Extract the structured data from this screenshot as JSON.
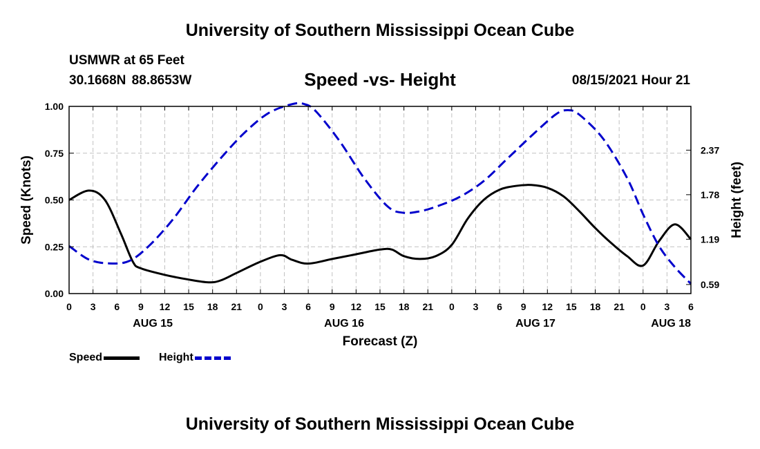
{
  "header": {
    "title": "University of Southern Mississippi Ocean Cube",
    "station": "USMWR at 65 Feet",
    "coordinates": "30.1668N  88.8653W",
    "subtitle": "Speed -vs- Height",
    "datetime": "08/15/2021 Hour 21"
  },
  "footer": {
    "title": "University of Southern Mississippi Ocean Cube"
  },
  "legend": {
    "speed_label": "Speed",
    "height_label": "Height"
  },
  "colors": {
    "speed": "#000000",
    "height": "#0000cc",
    "grid": "#c0c0c0"
  },
  "chart_data": {
    "type": "line",
    "title": "Speed -vs- Height",
    "xlabel": "Forecast (Z)",
    "ylabel": "Speed (Knots)",
    "y2label": "Height (feet)",
    "xlim": [
      0,
      78
    ],
    "ylim": [
      0,
      1.0
    ],
    "y_ticks": [
      0.0,
      0.25,
      0.5,
      0.75,
      1.0
    ],
    "y_tick_labels": [
      "0.00",
      "0.25",
      "0.50",
      "0.75",
      "1.00"
    ],
    "y2_ticks": [
      0.59,
      1.19,
      1.78,
      2.37
    ],
    "y2_tick_labels": [
      "0.59",
      "1.19",
      "1.78",
      "2.37"
    ],
    "y2lim": [
      0.47,
      2.95
    ],
    "x_ticks": [
      0,
      3,
      6,
      9,
      12,
      15,
      18,
      21,
      24,
      27,
      30,
      33,
      36,
      39,
      42,
      45,
      48,
      51,
      54,
      57,
      60,
      63,
      66,
      69,
      72,
      75,
      78
    ],
    "x_tick_labels": [
      "0",
      "3",
      "6",
      "9",
      "12",
      "15",
      "18",
      "21",
      "0",
      "3",
      "6",
      "9",
      "12",
      "15",
      "18",
      "21",
      "0",
      "3",
      "6",
      "9",
      "12",
      "15",
      "18",
      "21",
      "0",
      "3",
      "6"
    ],
    "date_labels": [
      {
        "x": 10.5,
        "label": "AUG 15"
      },
      {
        "x": 34.5,
        "label": "AUG 16"
      },
      {
        "x": 58.5,
        "label": "AUG 17"
      },
      {
        "x": 75.5,
        "label": "AUG 18"
      }
    ],
    "grid": true,
    "series": [
      {
        "name": "Speed",
        "axis": "left",
        "style": "solid",
        "x": [
          0,
          2.5,
          4.5,
          6.5,
          8,
          9,
          12,
          15,
          17.5,
          19,
          21,
          24,
          26.5,
          28,
          30,
          33,
          36,
          39,
          40.5,
          42,
          44,
          46,
          48,
          50,
          52,
          54,
          56,
          58,
          60,
          62,
          64,
          66,
          68,
          70,
          72,
          74,
          76,
          78
        ],
        "y": [
          0.5,
          0.55,
          0.5,
          0.32,
          0.17,
          0.135,
          0.1,
          0.075,
          0.06,
          0.07,
          0.11,
          0.17,
          0.205,
          0.18,
          0.16,
          0.185,
          0.21,
          0.235,
          0.235,
          0.2,
          0.185,
          0.2,
          0.26,
          0.4,
          0.5,
          0.555,
          0.575,
          0.58,
          0.565,
          0.52,
          0.44,
          0.35,
          0.27,
          0.2,
          0.15,
          0.28,
          0.37,
          0.29
        ]
      },
      {
        "name": "Height",
        "axis": "right",
        "style": "dashed",
        "x": [
          0,
          2.5,
          5,
          7.5,
          10,
          13,
          16,
          19,
          22,
          25,
          28,
          29.5,
          31,
          34,
          37,
          40,
          42,
          44,
          46,
          49,
          52,
          55,
          58,
          61,
          62.5,
          64,
          67,
          70,
          72,
          74,
          76,
          78
        ],
        "y": [
          1.1,
          0.92,
          0.87,
          0.9,
          1.1,
          1.45,
          1.88,
          2.26,
          2.6,
          2.86,
          2.98,
          2.98,
          2.88,
          2.48,
          2.0,
          1.62,
          1.54,
          1.56,
          1.62,
          1.75,
          1.96,
          2.26,
          2.56,
          2.84,
          2.9,
          2.84,
          2.52,
          2.0,
          1.52,
          1.1,
          0.82,
          0.6
        ]
      }
    ]
  }
}
